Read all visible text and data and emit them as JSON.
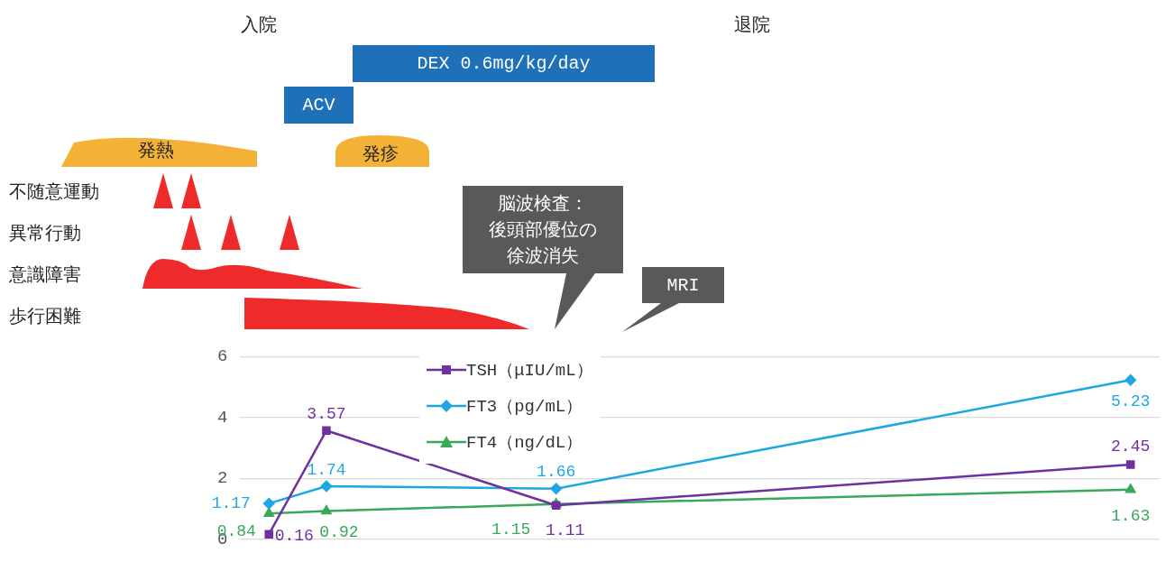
{
  "chart_data": {
    "type": "line",
    "categories": [
      null,
      null,
      null,
      null,
      null,
      null,
      null,
      null,
      null,
      null,
      null,
      null,
      null,
      null,
      null,
      null
    ],
    "series": [
      {
        "name": "TSH（μIU/mL）",
        "color": "#7030a0",
        "marker": "square",
        "values": [
          0.16,
          3.57,
          null,
          null,
          null,
          1.11,
          null,
          null,
          null,
          null,
          null,
          null,
          null,
          null,
          null,
          2.45
        ]
      },
      {
        "name": "FT3（pg/mL）",
        "color": "#1ea7e1",
        "marker": "diamond",
        "values": [
          1.17,
          1.74,
          null,
          null,
          null,
          1.66,
          null,
          null,
          null,
          null,
          null,
          null,
          null,
          null,
          null,
          5.23
        ]
      },
      {
        "name": "FT4（ng/dL）",
        "color": "#38a85a",
        "marker": "triangle",
        "values": [
          0.84,
          0.92,
          null,
          null,
          null,
          1.15,
          null,
          null,
          null,
          null,
          null,
          null,
          null,
          null,
          null,
          1.63
        ]
      }
    ],
    "ylim": [
      0,
      6
    ],
    "yticks": [
      0,
      2,
      4,
      6
    ],
    "grid": "y",
    "legend": "top left",
    "tick_labels": "y",
    "data_labels": true,
    "line_style": "solid",
    "annotations": [
      "入院",
      "退院",
      "DEX 0.6mg/kg/day",
      "ACV",
      "発熱",
      "発疹",
      "不随意運動",
      "異常行動",
      "意識障害",
      "歩行困難",
      "脳波検査：",
      "後頭部優位の",
      "徐波消失",
      "MRI"
    ]
  }
}
